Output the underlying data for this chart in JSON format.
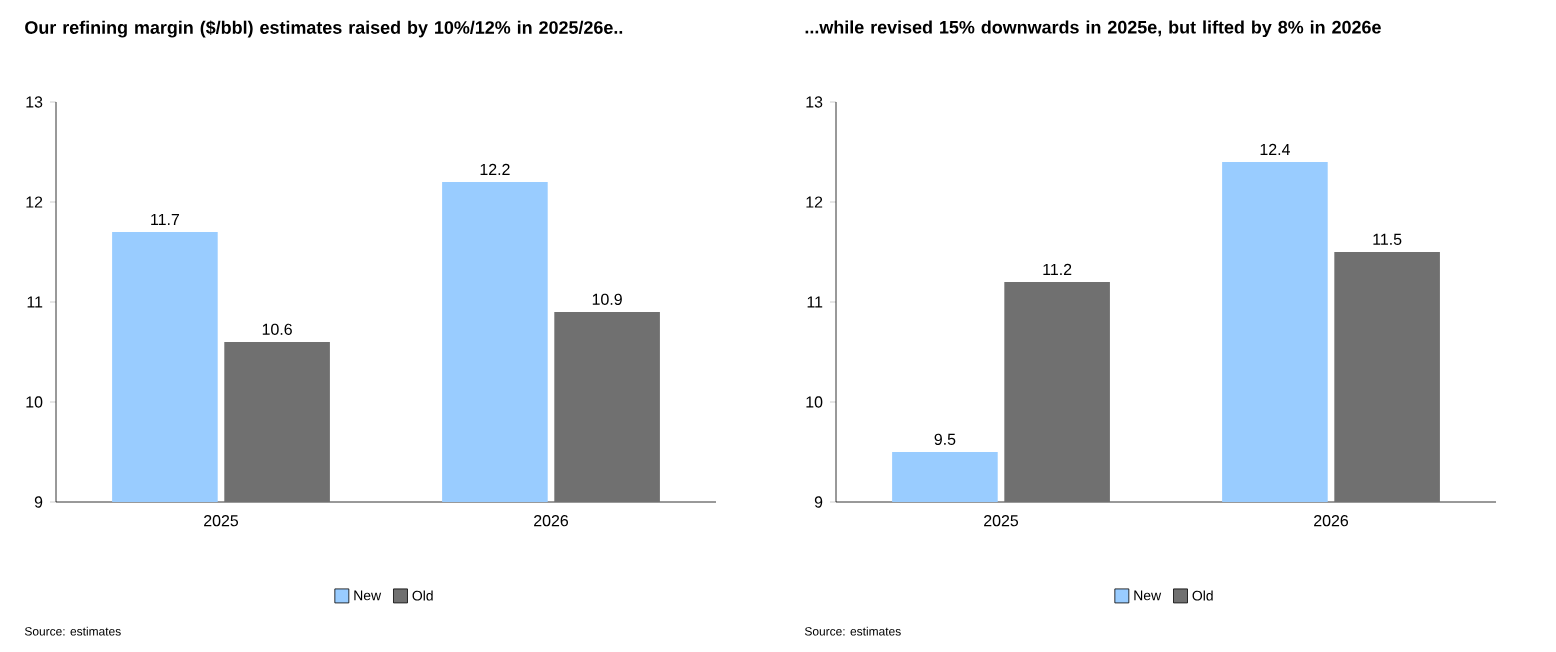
{
  "chart_data": [
    {
      "type": "bar",
      "title": "Our refining margin ($/bbl) estimates raised by 10%/12% in 2025/26e..",
      "categories": [
        "2025",
        "2026"
      ],
      "series": [
        {
          "name": "New",
          "color": "#99ccff",
          "values": [
            11.7,
            12.2
          ]
        },
        {
          "name": "Old",
          "color": "#707070",
          "values": [
            10.6,
            10.9
          ]
        }
      ],
      "ylim": [
        9,
        13
      ],
      "yticks": [
        9,
        10,
        11,
        12,
        13
      ],
      "data_labels": true,
      "legend": "bottom",
      "grid": false,
      "annotations": [
        "Source: estimates"
      ]
    },
    {
      "type": "bar",
      "title": "...while revised 15% downwards in 2025e, but lifted by 8% in 2026e",
      "categories": [
        "2025",
        "2026"
      ],
      "series": [
        {
          "name": "New",
          "color": "#99ccff",
          "values": [
            9.5,
            12.4
          ]
        },
        {
          "name": "Old",
          "color": "#707070",
          "values": [
            11.2,
            11.5
          ]
        }
      ],
      "ylim": [
        9,
        13
      ],
      "yticks": [
        9,
        10,
        11,
        12,
        13
      ],
      "data_labels": true,
      "legend": "bottom",
      "grid": false,
      "annotations": [
        "Source: estimates"
      ]
    }
  ]
}
